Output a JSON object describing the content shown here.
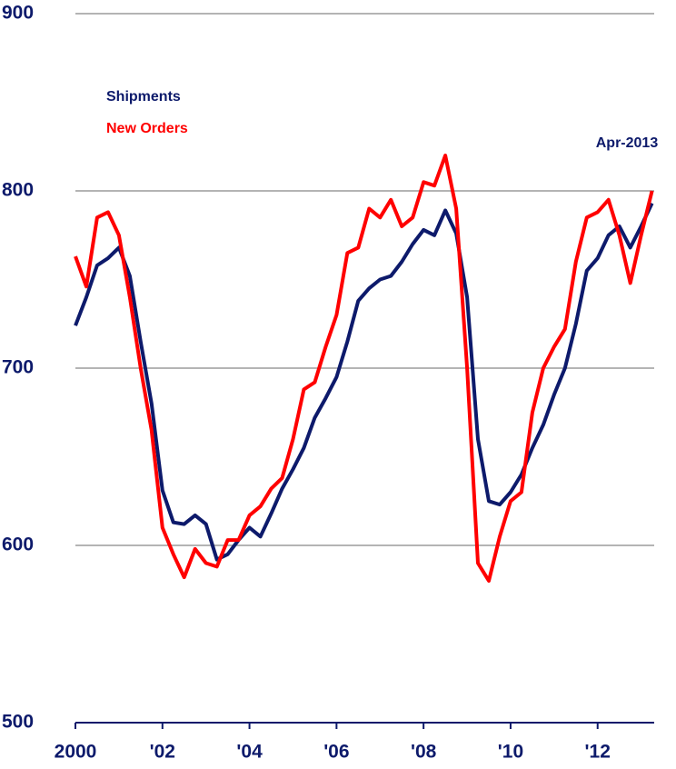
{
  "chart_data": {
    "type": "line",
    "annotation": "Apr-2013",
    "x": [
      2000,
      2000.25,
      2000.5,
      2000.75,
      2001,
      2001.25,
      2001.5,
      2001.75,
      2002,
      2002.25,
      2002.5,
      2002.75,
      2003,
      2003.25,
      2003.5,
      2003.75,
      2004,
      2004.25,
      2004.5,
      2004.75,
      2005,
      2005.25,
      2005.5,
      2005.75,
      2006,
      2006.25,
      2006.5,
      2006.75,
      2007,
      2007.25,
      2007.5,
      2007.75,
      2008,
      2008.25,
      2008.5,
      2008.75,
      2009,
      2009.25,
      2009.5,
      2009.75,
      2010,
      2010.25,
      2010.5,
      2010.75,
      2011,
      2011.25,
      2011.5,
      2011.75,
      2012,
      2012.25,
      2012.5,
      2012.75,
      2013,
      2013.25
    ],
    "series": [
      {
        "name": "Shipments",
        "color": "#0d1a6b",
        "values": [
          724,
          740,
          758,
          762,
          768,
          752,
          715,
          680,
          631,
          613,
          612,
          617,
          612,
          592,
          595,
          603,
          610,
          605,
          618,
          632,
          643,
          655,
          672,
          683,
          695,
          715,
          738,
          745,
          750,
          752,
          760,
          770,
          778,
          775,
          789,
          776,
          740,
          660,
          625,
          623,
          630,
          640,
          655,
          668,
          685,
          700,
          725,
          755,
          762,
          775,
          780,
          768,
          780,
          793
        ]
      },
      {
        "name": "New Orders",
        "color": "#ff0000",
        "values": [
          763,
          746,
          785,
          788,
          775,
          740,
          700,
          665,
          610,
          595,
          582,
          598,
          590,
          588,
          603,
          603,
          617,
          622,
          632,
          638,
          660,
          688,
          692,
          712,
          730,
          765,
          768,
          790,
          785,
          795,
          780,
          785,
          805,
          803,
          820,
          790,
          700,
          590,
          580,
          605,
          625,
          630,
          675,
          700,
          712,
          722,
          760,
          785,
          788,
          795,
          775,
          748,
          775,
          800
        ]
      }
    ],
    "xlim": [
      2000,
      2013.3
    ],
    "xticks": [
      2000,
      {
        "value": 2002,
        "label": "'02"
      },
      {
        "value": 2004,
        "label": "'04"
      },
      {
        "value": 2006,
        "label": "'06"
      },
      {
        "value": 2008,
        "label": "'08"
      },
      {
        "value": 2010,
        "label": "'10"
      },
      {
        "value": 2012,
        "label": "'12"
      }
    ],
    "ylim": [
      500,
      900
    ],
    "yticks": [
      500,
      600,
      700,
      800,
      900
    ],
    "grid": true
  }
}
